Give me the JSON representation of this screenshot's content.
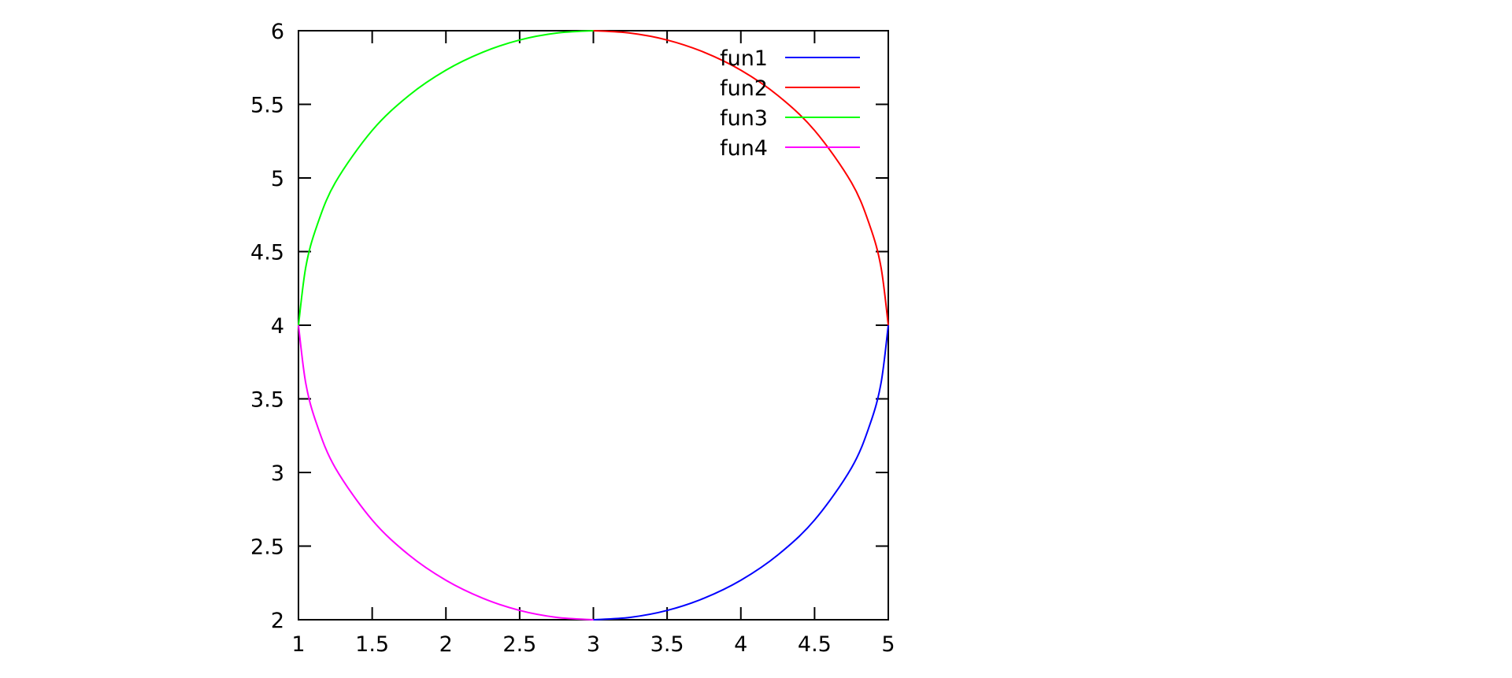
{
  "chart_data": {
    "type": "line",
    "title": "",
    "xlabel": "",
    "ylabel": "",
    "xlim": [
      1,
      5
    ],
    "ylim": [
      2,
      6
    ],
    "x_ticks": [
      "1",
      "1.5",
      "2",
      "2.5",
      "3",
      "3.5",
      "4",
      "4.5",
      "5"
    ],
    "y_ticks": [
      "2",
      "2.5",
      "3",
      "3.5",
      "4",
      "4.5",
      "5",
      "5.5",
      "6"
    ],
    "grid": false,
    "legend_position": "top-right",
    "series": [
      {
        "name": "fun1",
        "color": "#0000ff",
        "x": [
          3,
          3.25,
          3.5,
          3.75,
          4,
          4.25,
          4.5,
          4.75,
          4.875,
          4.95,
          5
        ],
        "y": [
          2,
          2.016,
          2.063,
          2.146,
          2.268,
          2.439,
          2.677,
          3.031,
          3.325,
          3.603,
          4
        ]
      },
      {
        "name": "fun2",
        "color": "#ff0000",
        "x": [
          3,
          3.25,
          3.5,
          3.75,
          4,
          4.25,
          4.5,
          4.75,
          4.875,
          4.95,
          5
        ],
        "y": [
          6,
          5.984,
          5.937,
          5.854,
          5.732,
          5.561,
          5.323,
          4.969,
          4.675,
          4.397,
          4
        ]
      },
      {
        "name": "fun3",
        "color": "#00ff00",
        "x": [
          1,
          1.05,
          1.125,
          1.25,
          1.5,
          1.75,
          2,
          2.25,
          2.5,
          2.75,
          3
        ],
        "y": [
          4,
          4.397,
          4.675,
          4.969,
          5.323,
          5.561,
          5.732,
          5.854,
          5.937,
          5.984,
          6
        ]
      },
      {
        "name": "fun4",
        "color": "#ff00ff",
        "x": [
          1,
          1.05,
          1.125,
          1.25,
          1.5,
          1.75,
          2,
          2.25,
          2.5,
          2.75,
          3
        ],
        "y": [
          4,
          3.603,
          3.325,
          3.031,
          2.677,
          2.439,
          2.268,
          2.146,
          2.063,
          2.016,
          2
        ]
      }
    ]
  }
}
